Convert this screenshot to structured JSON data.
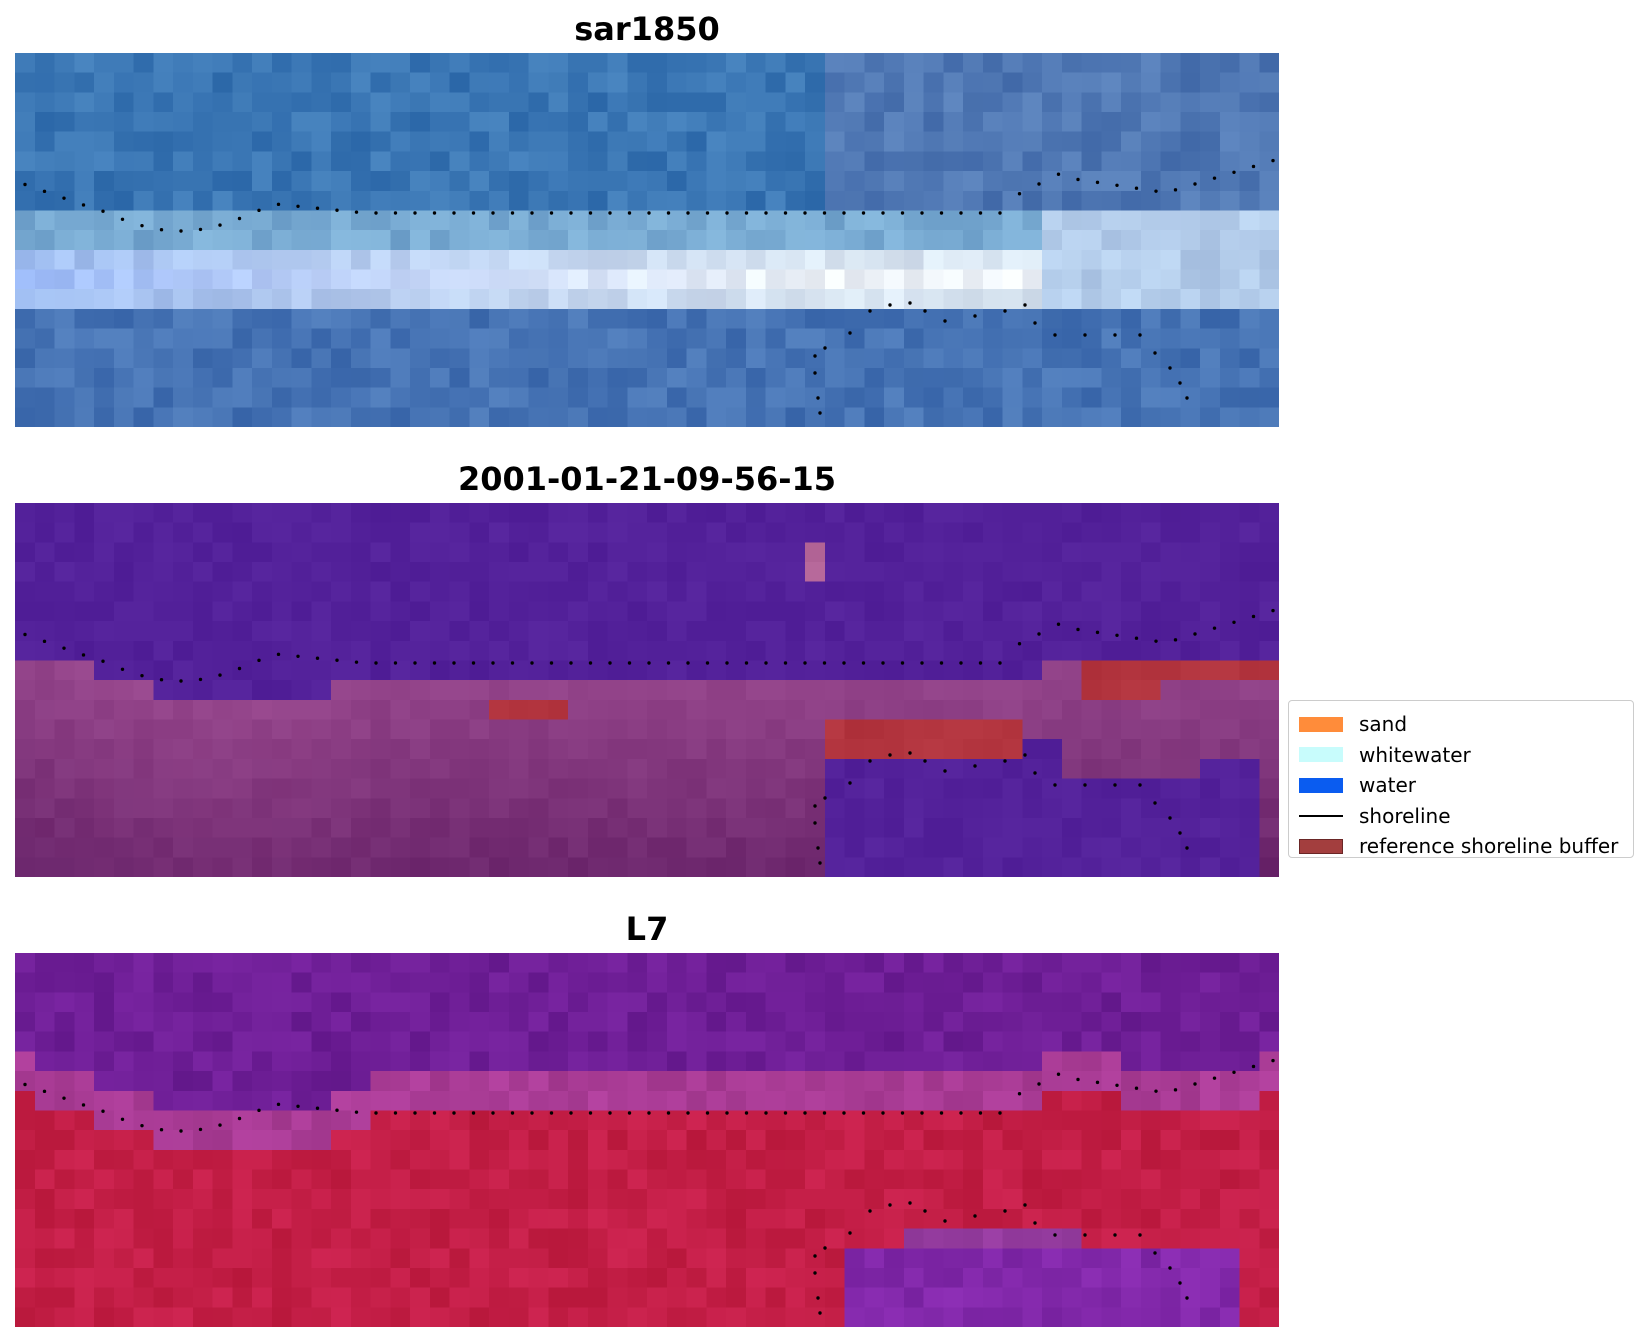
{
  "panels": [
    {
      "title": "sar1850",
      "style": "rgb"
    },
    {
      "title": "2001-01-21-09-56-15",
      "style": "classified"
    },
    {
      "title": "L7",
      "style": "index"
    }
  ],
  "legend": {
    "items": [
      {
        "label": "sand",
        "color": "#ff8c3a",
        "kind": "patch"
      },
      {
        "label": "whitewater",
        "color": "#c8fcfc",
        "kind": "patch"
      },
      {
        "label": "water",
        "color": "#0a5cf0",
        "kind": "patch"
      },
      {
        "label": "shoreline",
        "color": "#000000",
        "kind": "line"
      },
      {
        "label": "reference shoreline buffer",
        "color": "#9a2a2a",
        "kind": "patch-border"
      }
    ]
  },
  "colors": {
    "shoreline_dots": "#000000",
    "deep_purple": "#53219a",
    "buffer_red": "#b4323c",
    "index_red": "#c0143c",
    "sar_blue": "#3a74b4",
    "sar_white": "#e8eef8"
  }
}
